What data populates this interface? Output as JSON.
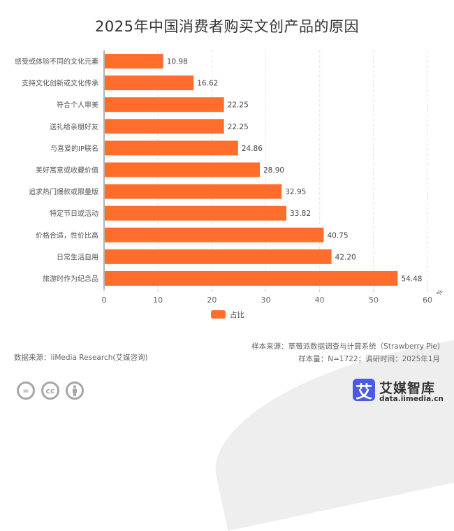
{
  "chart_data": {
    "type": "bar",
    "orientation": "horizontal",
    "title": "2025年中国消费者购买文创产品的原因",
    "categories": [
      "感受或体验不同的文化元素",
      "支持文化创新或文化传承",
      "符合个人审美",
      "送礼给亲朋好友",
      "与喜爱的IP联名",
      "美好寓意或收藏价值",
      "追求热门爆款或限量版",
      "特定节日或活动",
      "价格合适，性价比高",
      "日常生活自用",
      "旅游时作为纪念品"
    ],
    "series": [
      {
        "name": "占比",
        "color": "#ff6d2d",
        "values": [
          10.98,
          16.62,
          22.25,
          22.25,
          24.86,
          28.9,
          32.95,
          33.82,
          40.75,
          42.2,
          54.48
        ],
        "labels": [
          "10.98",
          "16.62",
          "22.25",
          "22.25",
          "24.86",
          "28.90",
          "32.95",
          "33.82",
          "40.75",
          "42.20",
          "54.48"
        ]
      }
    ],
    "xlabel": "%",
    "ylabel": "",
    "xlim": [
      0,
      60
    ],
    "xticks": [
      0,
      10,
      20,
      30,
      40,
      50,
      60
    ],
    "grid": true,
    "legend": "bottom-center"
  },
  "footer": {
    "data_source": "数据来源：iiMedia Research(艾媒咨询)",
    "sample_source": "样本来源：草莓派数据调查与计算系统（Strawberry Pie)",
    "sample_info": "样本量：N=1722；调研时间：2025年1月"
  },
  "branding": {
    "logo_glyph": "艾",
    "name": "艾媒智库",
    "url": "data.iimedia.cn",
    "accent": "#4a5ae6"
  },
  "license_icons": [
    "nd-icon",
    "cc-icon",
    "by-icon"
  ],
  "license_glyphs": [
    "=",
    "cc",
    ""
  ]
}
